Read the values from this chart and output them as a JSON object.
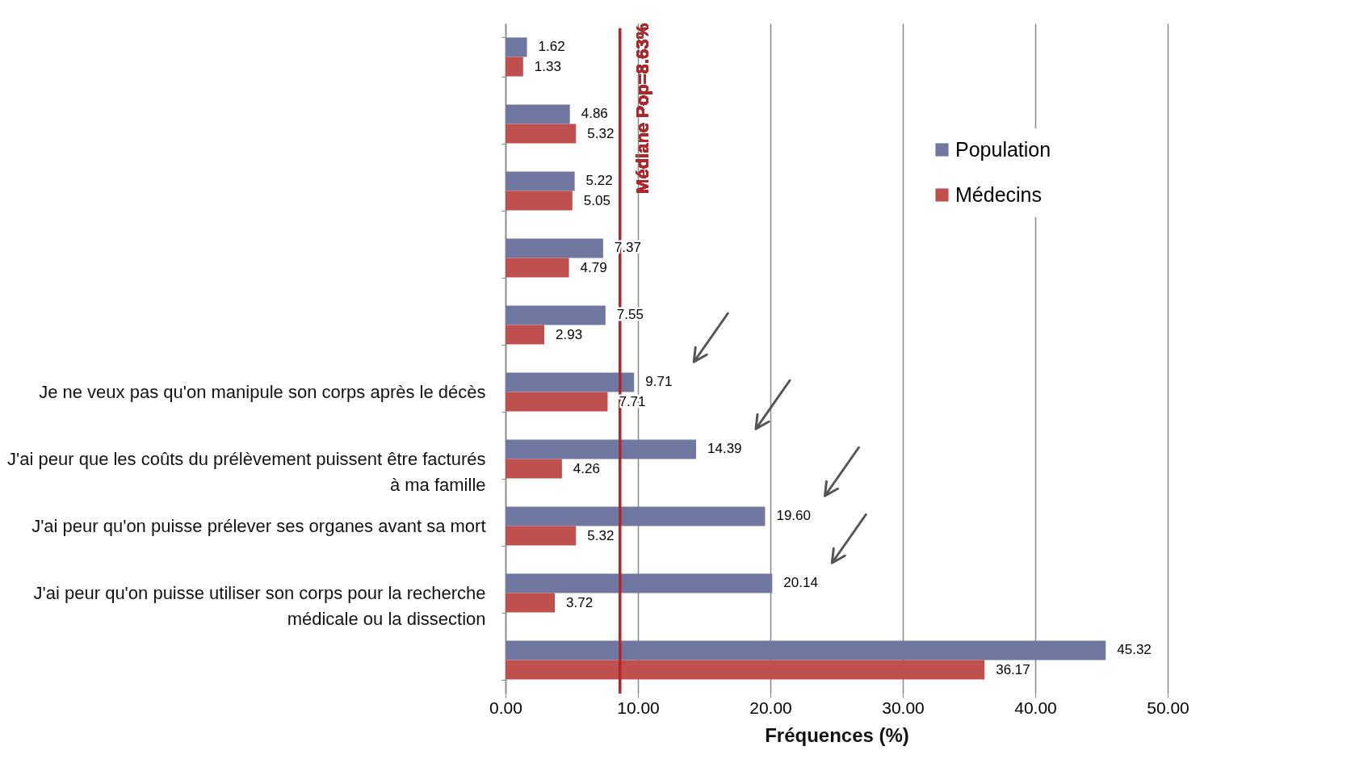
{
  "chart_data": {
    "type": "bar",
    "orientation": "horizontal",
    "xlabel": "Fréquences (%)",
    "categories": [
      null,
      null,
      null,
      null,
      null,
      "Je ne veux pas qu'on manipule son corps après le décès",
      "J'ai peur que les coûts du prélèvement puissent être facturés à ma famille",
      "J'ai peur qu'on puisse prélever ses organes avant sa mort",
      "J'ai peur qu'on puisse utiliser son corps pour la recherche médicale ou la dissection",
      null
    ],
    "series": [
      {
        "name": "Population",
        "color": "#7078a1",
        "values": [
          1.62,
          4.86,
          5.22,
          7.37,
          7.55,
          9.71,
          14.39,
          19.6,
          20.14,
          45.32
        ],
        "value_labels": [
          "1.62",
          "4.86",
          "5.22",
          "7.37",
          "7.55",
          "9.71",
          "14.39",
          "19.60",
          "20.14",
          "45.32"
        ]
      },
      {
        "name": "Médecins",
        "color": "#c0504d",
        "values": [
          1.33,
          5.32,
          5.05,
          4.79,
          2.93,
          7.71,
          4.26,
          5.32,
          3.72,
          36.17
        ],
        "value_labels": [
          "1.33",
          "5.32",
          "5.05",
          "4.79",
          "2.93",
          "7.71",
          "4.26",
          "5.32",
          "3.72",
          "36.17"
        ]
      }
    ],
    "xlim": [
      0,
      50
    ],
    "xticks": [
      {
        "value": 0,
        "label": "0.00"
      },
      {
        "value": 10,
        "label": "10.00"
      },
      {
        "value": 20,
        "label": "20.00"
      },
      {
        "value": 30,
        "label": "30.00"
      },
      {
        "value": 40,
        "label": "40.00"
      },
      {
        "value": 50,
        "label": "50.00"
      }
    ],
    "ref_lines": [
      {
        "axis": "x",
        "value": 8.63,
        "label": "Médiane Pop=8.63%",
        "color": "#b0282a"
      }
    ],
    "grid": "x",
    "legend": "top right"
  }
}
